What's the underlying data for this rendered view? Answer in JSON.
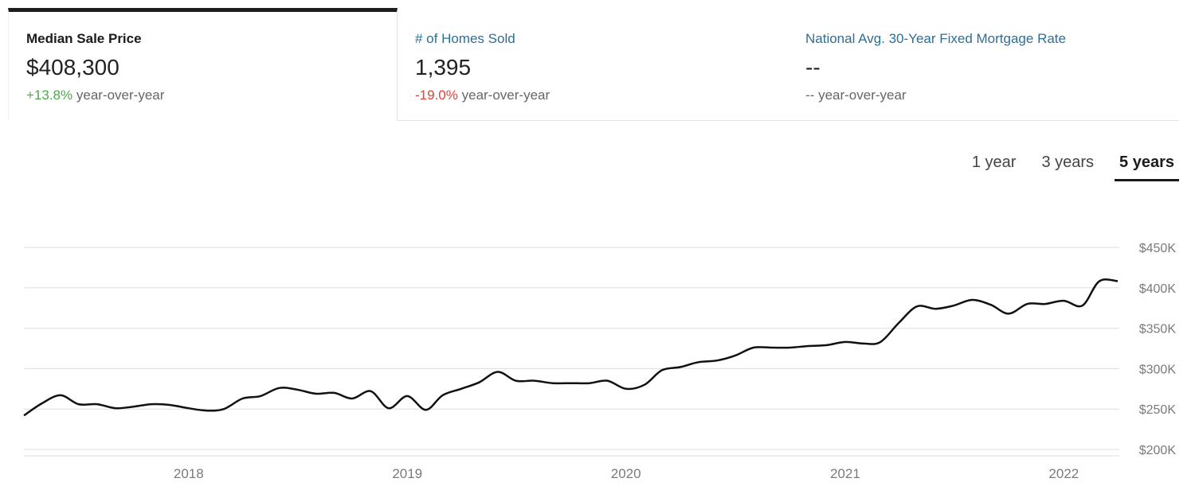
{
  "tabs": [
    {
      "title": "Median Sale Price",
      "value": "$408,300",
      "change": "+13.8%",
      "change_suffix": "year-over-year",
      "active": true
    },
    {
      "title": "# of Homes Sold",
      "value": "1,395",
      "change": "-19.0%",
      "change_suffix": "year-over-year",
      "active": false
    },
    {
      "title": "National Avg. 30-Year Fixed Mortgage Rate",
      "value": "--",
      "change": "--",
      "change_suffix": "year-over-year",
      "active": false
    }
  ],
  "range": {
    "options": [
      "1 year",
      "3 years",
      "5 years"
    ],
    "selected": "5 years"
  },
  "colors": {
    "positive": "#4ea84f",
    "negative": "#e0433b",
    "link": "#2c6f96",
    "line": "#111111"
  },
  "chart_data": {
    "type": "line",
    "title": "",
    "xlabel": "",
    "ylabel": "",
    "ylim": [
      200000,
      450000
    ],
    "y_ticks": [
      200000,
      250000,
      300000,
      350000,
      400000,
      450000
    ],
    "y_tick_labels": [
      "$200K",
      "$250K",
      "$300K",
      "$350K",
      "$400K",
      "$450K"
    ],
    "x_ticks": [
      "2018-01-01",
      "2019-01-01",
      "2020-01-01",
      "2021-01-01",
      "2022-01-01"
    ],
    "x_tick_labels": [
      "2018",
      "2019",
      "2020",
      "2021",
      "2022"
    ],
    "grid": true,
    "series": [
      {
        "x": [
          "2017-04-01",
          "2017-05-01",
          "2017-06-01",
          "2017-07-01",
          "2017-08-01",
          "2017-09-01",
          "2017-10-01",
          "2017-11-01",
          "2017-12-01",
          "2018-01-01",
          "2018-02-01",
          "2018-03-01",
          "2018-04-01",
          "2018-05-01",
          "2018-06-01",
          "2018-07-01",
          "2018-08-01",
          "2018-09-01",
          "2018-10-01",
          "2018-11-01",
          "2018-12-01",
          "2019-01-01",
          "2019-02-01",
          "2019-03-01",
          "2019-04-01",
          "2019-05-01",
          "2019-06-01",
          "2019-07-01",
          "2019-08-01",
          "2019-09-01",
          "2019-10-01",
          "2019-11-01",
          "2019-12-01",
          "2020-01-01",
          "2020-02-01",
          "2020-03-01",
          "2020-04-01",
          "2020-05-01",
          "2020-06-01",
          "2020-07-01",
          "2020-08-01",
          "2020-09-01",
          "2020-10-01",
          "2020-11-01",
          "2020-12-01",
          "2021-01-01",
          "2021-02-01",
          "2021-03-01",
          "2021-04-01",
          "2021-05-01",
          "2021-06-01",
          "2021-07-01",
          "2021-08-01",
          "2021-09-01",
          "2021-10-01",
          "2021-11-01",
          "2021-12-01",
          "2022-01-01",
          "2022-02-01",
          "2022-03-01",
          "2022-04-01"
        ],
        "values": [
          242000,
          257000,
          267000,
          256000,
          256000,
          251000,
          253000,
          256000,
          255000,
          251000,
          248000,
          250000,
          263000,
          266000,
          276000,
          274000,
          269000,
          270000,
          263000,
          272000,
          251000,
          266000,
          249000,
          267000,
          275000,
          283000,
          296000,
          285000,
          285000,
          282000,
          282000,
          282000,
          285000,
          275000,
          280000,
          298000,
          302000,
          308000,
          310000,
          316000,
          326000,
          326000,
          326000,
          328000,
          329000,
          333000,
          331000,
          333000,
          357000,
          377000,
          374000,
          378000,
          385000,
          379000,
          368000,
          380000,
          380000,
          384000,
          378000,
          408000,
          408300
        ]
      }
    ]
  }
}
